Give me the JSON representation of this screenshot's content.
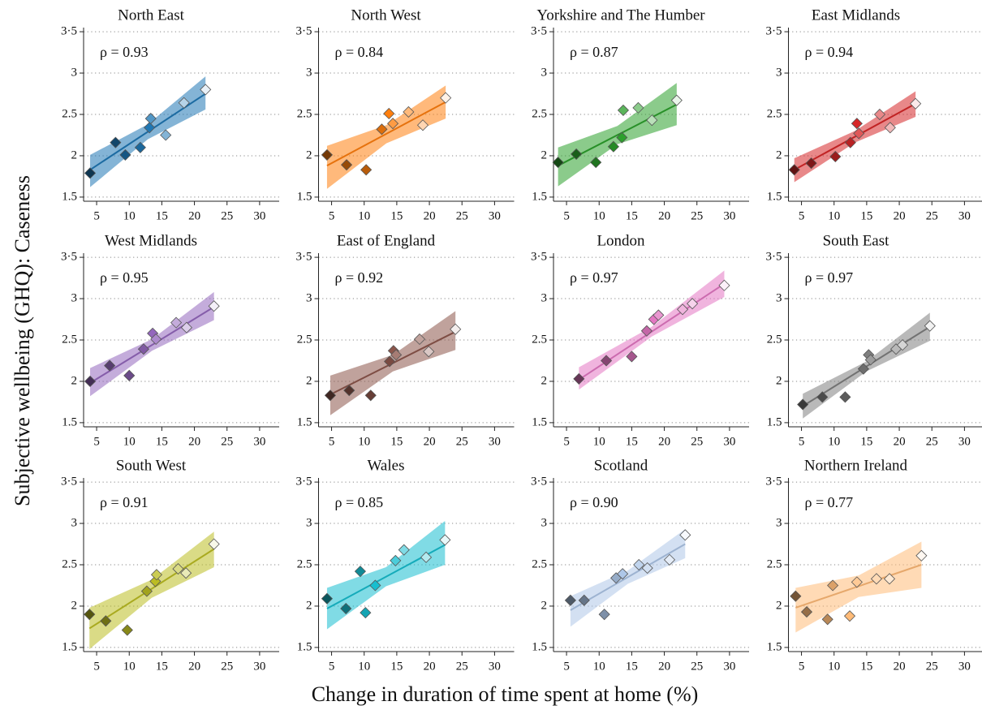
{
  "y_axis_title": "Subjective wellbeing (GHQ): Caseness",
  "x_axis_title": "Change in duration of time spent at home (%)",
  "chart_data": [
    {
      "type": "scatter",
      "title": "North East",
      "annotation": "ρ = 0.93",
      "color": "#1f77b4",
      "x": [
        4.0,
        7.9,
        9.4,
        11.7,
        13.1,
        13.3,
        15.6,
        18.4,
        21.7
      ],
      "y": [
        1.79,
        2.16,
        2.01,
        2.1,
        2.34,
        2.45,
        2.25,
        2.64,
        2.8
      ],
      "fit": {
        "x": [
          4.0,
          21.7
        ],
        "y": [
          1.83,
          2.75
        ]
      },
      "band": {
        "x": [
          4.0,
          12.85,
          21.7
        ],
        "lower": [
          1.62,
          2.2,
          2.56
        ],
        "upper": [
          2.01,
          2.38,
          2.96
        ]
      },
      "xlim": [
        3,
        33
      ],
      "ylim": [
        1.45,
        3.55
      ],
      "xticks": [
        5,
        10,
        15,
        20,
        25,
        30
      ],
      "yticks": [
        1.5,
        2,
        2.5,
        3,
        {
          "value": 3.5,
          "label": "3·5"
        }
      ],
      "grid": true
    },
    {
      "type": "scatter",
      "title": "North West",
      "annotation": "ρ = 0.84",
      "color": "#ff7f0e",
      "x": [
        4.3,
        7.3,
        10.3,
        12.7,
        13.8,
        14.4,
        16.8,
        19.0,
        22.5
      ],
      "y": [
        2.01,
        1.89,
        1.83,
        2.32,
        2.51,
        2.39,
        2.53,
        2.37,
        2.7
      ],
      "fit": {
        "x": [
          4.3,
          22.5
        ],
        "y": [
          1.88,
          2.65
        ]
      },
      "band": {
        "x": [
          4.3,
          13.4,
          22.5
        ],
        "lower": [
          1.6,
          2.15,
          2.45
        ],
        "upper": [
          2.12,
          2.37,
          2.85
        ]
      },
      "xlim": [
        3,
        33
      ],
      "ylim": [
        1.45,
        3.55
      ],
      "xticks": [
        5,
        10,
        15,
        20,
        25,
        30
      ],
      "yticks": [
        1.5,
        2,
        2.5,
        3,
        {
          "value": 3.5,
          "label": "3·5"
        }
      ],
      "grid": true
    },
    {
      "type": "scatter",
      "title": "Yorkshire and The Humber",
      "annotation": "ρ = 0.87",
      "color": "#2ca02c",
      "x": [
        3.7,
        6.5,
        9.5,
        12.2,
        13.5,
        13.7,
        16.0,
        18.1,
        21.9
      ],
      "y": [
        1.92,
        2.02,
        1.92,
        2.11,
        2.22,
        2.55,
        2.58,
        2.43,
        2.67
      ],
      "fit": {
        "x": [
          3.7,
          21.9
        ],
        "y": [
          1.88,
          2.62
        ]
      },
      "band": {
        "x": [
          3.7,
          12.8,
          21.9
        ],
        "lower": [
          1.63,
          2.14,
          2.37
        ],
        "upper": [
          2.1,
          2.36,
          2.88
        ]
      },
      "xlim": [
        3,
        33
      ],
      "ylim": [
        1.45,
        3.55
      ],
      "xticks": [
        5,
        10,
        15,
        20,
        25,
        30
      ],
      "yticks": [
        1.5,
        2,
        2.5,
        3,
        {
          "value": 3.5,
          "label": "3·5"
        }
      ],
      "grid": true
    },
    {
      "type": "scatter",
      "title": "East Midlands",
      "annotation": "ρ = 0.94",
      "color": "#d62728",
      "x": [
        3.9,
        6.5,
        10.2,
        12.5,
        13.5,
        13.8,
        17.0,
        18.6,
        22.5
      ],
      "y": [
        1.83,
        1.91,
        1.99,
        2.16,
        2.39,
        2.27,
        2.5,
        2.34,
        2.63
      ],
      "fit": {
        "x": [
          3.9,
          22.5
        ],
        "y": [
          1.83,
          2.63
        ]
      },
      "band": {
        "x": [
          3.9,
          13.2,
          22.5
        ],
        "lower": [
          1.68,
          2.16,
          2.47
        ],
        "upper": [
          1.97,
          2.3,
          2.78
        ]
      },
      "xlim": [
        3,
        33
      ],
      "ylim": [
        1.45,
        3.55
      ],
      "xticks": [
        5,
        10,
        15,
        20,
        25,
        30
      ],
      "yticks": [
        1.5,
        2,
        2.5,
        3,
        {
          "value": 3.5,
          "label": "3·5"
        }
      ],
      "grid": true
    },
    {
      "type": "scatter",
      "title": "West Midlands",
      "annotation": "ρ = 0.95",
      "color": "#9467bd",
      "x": [
        4.0,
        7.0,
        10.0,
        12.2,
        13.6,
        14.1,
        17.2,
        18.8,
        23.0
      ],
      "y": [
        2.0,
        2.19,
        2.07,
        2.39,
        2.58,
        2.51,
        2.71,
        2.65,
        2.91
      ],
      "fit": {
        "x": [
          4.0,
          23.0
        ],
        "y": [
          1.98,
          2.9
        ]
      },
      "band": {
        "x": [
          4.0,
          13.5,
          23.0
        ],
        "lower": [
          1.82,
          2.37,
          2.74
        ],
        "upper": [
          2.16,
          2.51,
          3.08
        ]
      },
      "xlim": [
        3,
        33
      ],
      "ylim": [
        1.45,
        3.55
      ],
      "xticks": [
        5,
        10,
        15,
        20,
        25,
        30
      ],
      "yticks": [
        1.5,
        2,
        2.5,
        3,
        {
          "value": 3.5,
          "label": "3·5"
        }
      ],
      "grid": true
    },
    {
      "type": "scatter",
      "title": "East of England",
      "annotation": "ρ = 0.92",
      "color": "#8c564b",
      "x": [
        4.8,
        7.7,
        11.0,
        13.9,
        14.5,
        14.9,
        18.5,
        19.9,
        24.0
      ],
      "y": [
        1.83,
        1.89,
        1.83,
        2.24,
        2.37,
        2.32,
        2.51,
        2.36,
        2.63
      ],
      "fit": {
        "x": [
          4.8,
          24.0
        ],
        "y": [
          1.84,
          2.6
        ]
      },
      "band": {
        "x": [
          4.8,
          14.4,
          24.0
        ],
        "lower": [
          1.59,
          2.12,
          2.38
        ],
        "upper": [
          2.07,
          2.32,
          2.85
        ]
      },
      "xlim": [
        3,
        33
      ],
      "ylim": [
        1.45,
        3.55
      ],
      "xticks": [
        5,
        10,
        15,
        20,
        25,
        30
      ],
      "yticks": [
        1.5,
        2,
        2.5,
        3,
        {
          "value": 3.5,
          "label": "3·5"
        }
      ],
      "grid": true
    },
    {
      "type": "scatter",
      "title": "London",
      "annotation": "ρ = 0.97",
      "color": "#e377c2",
      "x": [
        6.9,
        11.1,
        15.0,
        17.3,
        18.4,
        19.1,
        22.8,
        24.3,
        29.2
      ],
      "y": [
        2.03,
        2.25,
        2.3,
        2.61,
        2.75,
        2.8,
        2.87,
        2.94,
        3.16
      ],
      "fit": {
        "x": [
          6.9,
          29.2
        ],
        "y": [
          2.02,
          3.18
        ]
      },
      "band": {
        "x": [
          6.9,
          18.05,
          29.2
        ],
        "lower": [
          1.9,
          2.54,
          3.02
        ],
        "upper": [
          2.17,
          2.66,
          3.34
        ]
      },
      "xlim": [
        3,
        33
      ],
      "ylim": [
        1.45,
        3.55
      ],
      "xticks": [
        5,
        10,
        15,
        20,
        25,
        30
      ],
      "yticks": [
        1.5,
        2,
        2.5,
        3,
        {
          "value": 3.5,
          "label": "3·5"
        }
      ],
      "grid": true
    },
    {
      "type": "scatter",
      "title": "South East",
      "annotation": "ρ = 0.97",
      "color": "#7f7f7f",
      "x": [
        5.2,
        8.2,
        11.7,
        14.5,
        15.3,
        15.6,
        19.5,
        20.5,
        24.7
      ],
      "y": [
        1.72,
        1.81,
        1.81,
        2.15,
        2.32,
        2.26,
        2.39,
        2.44,
        2.67
      ],
      "fit": {
        "x": [
          5.2,
          24.7
        ],
        "y": [
          1.7,
          2.66
        ]
      },
      "band": {
        "x": [
          5.2,
          14.95,
          24.7
        ],
        "lower": [
          1.55,
          2.12,
          2.49
        ],
        "upper": [
          1.85,
          2.24,
          2.83
        ]
      },
      "xlim": [
        3,
        33
      ],
      "ylim": [
        1.45,
        3.55
      ],
      "xticks": [
        5,
        10,
        15,
        20,
        25,
        30
      ],
      "yticks": [
        1.5,
        2,
        2.5,
        3,
        {
          "value": 3.5,
          "label": "3·5"
        }
      ],
      "grid": true
    },
    {
      "type": "scatter",
      "title": "South West",
      "annotation": "ρ = 0.91",
      "color": "#bcbd22",
      "x": [
        3.9,
        6.4,
        9.7,
        12.7,
        14.0,
        14.2,
        17.5,
        18.7,
        23.0
      ],
      "y": [
        1.9,
        1.82,
        1.71,
        2.18,
        2.3,
        2.38,
        2.45,
        2.4,
        2.75
      ],
      "fit": {
        "x": [
          3.9,
          23.0
        ],
        "y": [
          1.73,
          2.69
        ]
      },
      "band": {
        "x": [
          3.9,
          13.45,
          23.0
        ],
        "lower": [
          1.48,
          2.1,
          2.47
        ],
        "upper": [
          1.98,
          2.32,
          2.9
        ]
      },
      "xlim": [
        3,
        33
      ],
      "ylim": [
        1.45,
        3.55
      ],
      "xticks": [
        5,
        10,
        15,
        20,
        25,
        30
      ],
      "yticks": [
        1.5,
        2,
        2.5,
        3,
        {
          "value": 3.5,
          "label": "3·5"
        }
      ],
      "grid": true
    },
    {
      "type": "scatter",
      "title": "Wales",
      "annotation": "ρ = 0.85",
      "color": "#17becf",
      "x": [
        4.3,
        7.2,
        9.4,
        10.2,
        11.7,
        14.8,
        16.1,
        19.5,
        22.4
      ],
      "y": [
        2.09,
        1.97,
        2.42,
        1.92,
        2.25,
        2.55,
        2.68,
        2.59,
        2.8
      ],
      "fit": {
        "x": [
          4.3,
          22.4
        ],
        "y": [
          1.97,
          2.74
        ]
      },
      "band": {
        "x": [
          4.3,
          13.35,
          22.4
        ],
        "lower": [
          1.72,
          2.24,
          2.5
        ],
        "upper": [
          2.22,
          2.47,
          3.03
        ]
      },
      "xlim": [
        3,
        33
      ],
      "ylim": [
        1.45,
        3.55
      ],
      "xticks": [
        5,
        10,
        15,
        20,
        25,
        30
      ],
      "yticks": [
        1.5,
        2,
        2.5,
        3,
        {
          "value": 3.5,
          "label": "3·5"
        }
      ],
      "grid": true
    },
    {
      "type": "scatter",
      "title": "Scotland",
      "annotation": "ρ = 0.90",
      "color": "#aec7e8",
      "x": [
        5.6,
        7.7,
        10.8,
        12.6,
        13.6,
        16.1,
        17.4,
        20.8,
        23.2
      ],
      "y": [
        2.07,
        2.07,
        1.9,
        2.34,
        2.39,
        2.5,
        2.46,
        2.56,
        2.86
      ],
      "fit": {
        "x": [
          5.6,
          23.2
        ],
        "y": [
          1.95,
          2.75
        ]
      },
      "band": {
        "x": [
          5.6,
          14.4,
          23.2
        ],
        "lower": [
          1.75,
          2.27,
          2.58
        ],
        "upper": [
          2.12,
          2.43,
          2.93
        ]
      },
      "xlim": [
        3,
        33
      ],
      "ylim": [
        1.45,
        3.55
      ],
      "xticks": [
        5,
        10,
        15,
        20,
        25,
        30
      ],
      "yticks": [
        1.5,
        2,
        2.5,
        3,
        {
          "value": 3.5,
          "label": "3·5"
        }
      ],
      "grid": true
    },
    {
      "type": "scatter",
      "title": "Northern Ireland",
      "annotation": "ρ = 0.77",
      "color": "#ffbb78",
      "x": [
        4.1,
        5.8,
        9.0,
        9.8,
        12.4,
        13.5,
        16.5,
        18.5,
        23.4
      ],
      "y": [
        2.12,
        1.93,
        1.84,
        2.25,
        1.88,
        2.29,
        2.33,
        2.33,
        2.61
      ],
      "fit": {
        "x": [
          4.1,
          23.4
        ],
        "y": [
          1.98,
          2.5
        ]
      },
      "band": {
        "x": [
          4.1,
          13.75,
          23.4
        ],
        "lower": [
          1.68,
          2.11,
          2.22
        ],
        "upper": [
          2.22,
          2.37,
          2.78
        ]
      },
      "xlim": [
        3,
        33
      ],
      "ylim": [
        1.45,
        3.55
      ],
      "xticks": [
        5,
        10,
        15,
        20,
        25,
        30
      ],
      "yticks": [
        1.5,
        2,
        2.5,
        3,
        {
          "value": 3.5,
          "label": "3·5"
        }
      ],
      "grid": true
    }
  ]
}
